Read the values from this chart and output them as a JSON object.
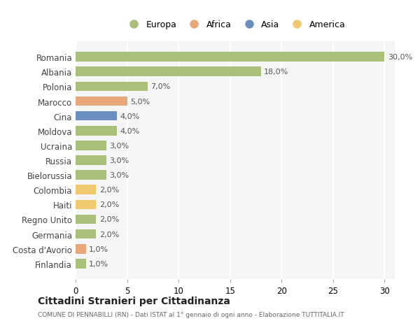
{
  "categories": [
    "Romania",
    "Albania",
    "Polonia",
    "Marocco",
    "Cina",
    "Moldova",
    "Ucraina",
    "Russia",
    "Bielorussia",
    "Colombia",
    "Haiti",
    "Regno Unito",
    "Germania",
    "Costa d'Avorio",
    "Finlandia"
  ],
  "values": [
    30.0,
    18.0,
    7.0,
    5.0,
    4.0,
    4.0,
    3.0,
    3.0,
    3.0,
    2.0,
    2.0,
    2.0,
    2.0,
    1.0,
    1.0
  ],
  "bar_colors": [
    "#a8c07a",
    "#a8c07a",
    "#a8c07a",
    "#e8a87c",
    "#6b8fbe",
    "#a8c07a",
    "#a8c07a",
    "#a8c07a",
    "#a8c07a",
    "#f0c86e",
    "#f0c86e",
    "#a8c07a",
    "#a8c07a",
    "#e8a87c",
    "#a8c07a"
  ],
  "legend_labels": [
    "Europa",
    "Africa",
    "Asia",
    "America"
  ],
  "legend_colors": [
    "#a8c07a",
    "#e8a87c",
    "#6b8fbe",
    "#f0c86e"
  ],
  "xlim": [
    0,
    31
  ],
  "xticks": [
    0,
    5,
    10,
    15,
    20,
    25,
    30
  ],
  "title_main": "Cittadini Stranieri per Cittadinanza",
  "title_sub": "COMUNE DI PENNABILLI (RN) - Dati ISTAT al 1° gennaio di ogni anno - Elaborazione TUTTITALIA.IT",
  "bg_color": "#ffffff",
  "plot_bg_color": "#f5f5f5",
  "grid_color": "#ffffff"
}
